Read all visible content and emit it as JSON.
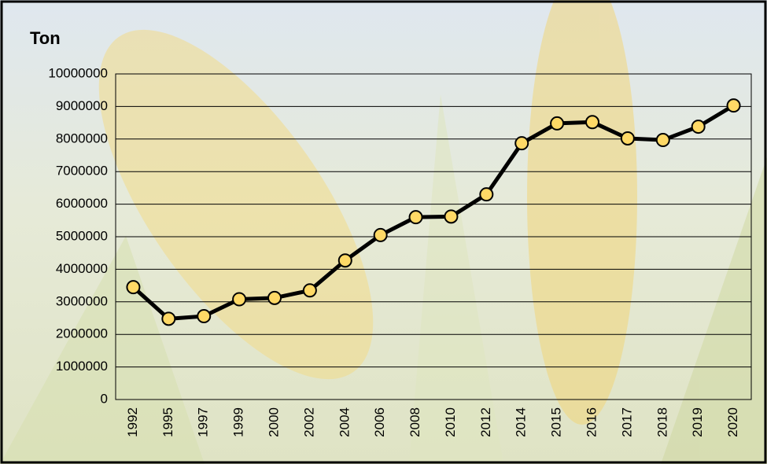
{
  "chart_data": {
    "type": "line",
    "y_label": "Ton",
    "categories": [
      "1992",
      "1995",
      "1997",
      "1999",
      "2000",
      "2002",
      "2004",
      "2006",
      "2008",
      "2010",
      "2012",
      "2014",
      "2015",
      "2016",
      "2017",
      "2018",
      "2019",
      "2020"
    ],
    "series": [
      {
        "name": "Ton",
        "color": "#000000",
        "marker_color": "#FFD966",
        "values": [
          3450000,
          2480000,
          2560000,
          3080000,
          3120000,
          3350000,
          4270000,
          5050000,
          5600000,
          5620000,
          6300000,
          7870000,
          8480000,
          8520000,
          8020000,
          7970000,
          8380000,
          9030000
        ]
      }
    ],
    "ylim": [
      0,
      10000000
    ],
    "yticks": [
      0,
      1000000,
      2000000,
      3000000,
      4000000,
      5000000,
      6000000,
      7000000,
      8000000,
      9000000,
      10000000
    ],
    "grid": true
  }
}
